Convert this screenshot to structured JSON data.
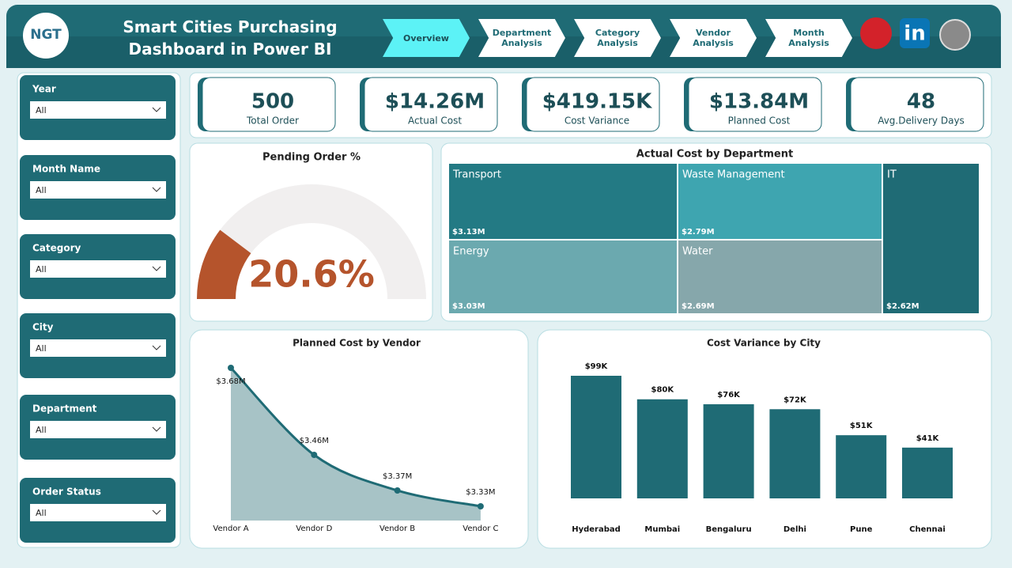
{
  "header": {
    "logo": "NGT",
    "title": "Smart Cities Purchasing Dashboard in Power BI"
  },
  "nav": [
    "Overview",
    "Department Analysis",
    "Category Analysis",
    "Vendor Analysis",
    "Month Analysis"
  ],
  "slicers": [
    {
      "label": "Year",
      "value": "All"
    },
    {
      "label": "Month Name",
      "value": "All"
    },
    {
      "label": "Category",
      "value": "All"
    },
    {
      "label": "City",
      "value": "All"
    },
    {
      "label": "Department",
      "value": "All"
    },
    {
      "label": "Order Status",
      "value": "All"
    }
  ],
  "kpis": [
    {
      "value": "500",
      "label": "Total Order"
    },
    {
      "value": "$14.26M",
      "label": "Actual Cost"
    },
    {
      "value": "$419.15K",
      "label": "Cost Variance"
    },
    {
      "value": "$13.84M",
      "label": "Planned Cost"
    },
    {
      "value": "48",
      "label": "Avg.Delivery Days"
    }
  ],
  "chart_data": [
    {
      "type": "gauge",
      "title": "Pending Order %",
      "values": [
        20.6
      ],
      "value_labels": [
        "20.6%"
      ],
      "ylim": [
        0,
        100
      ],
      "color": "#b5542c"
    },
    {
      "type": "treemap",
      "title": "Actual Cost by Department",
      "categories": [
        "Transport",
        "Waste Management",
        "IT",
        "Energy",
        "Water"
      ],
      "values": [
        3.13,
        2.79,
        2.62,
        3.03,
        2.69
      ],
      "value_labels": [
        "$3.13M",
        "$2.79M",
        "$2.62M",
        "$3.03M",
        "$2.69M"
      ],
      "colors": [
        "#237a84",
        "#3ea5b0",
        "#1f6b75",
        "#6ba9af",
        "#86a7ab"
      ]
    },
    {
      "type": "area",
      "title": "Planned Cost by Vendor",
      "categories": [
        "Vendor A",
        "Vendor D",
        "Vendor B",
        "Vendor C"
      ],
      "values": [
        3.68,
        3.46,
        3.37,
        3.33
      ],
      "value_labels": [
        "$3.68M",
        "$3.46M",
        "$3.37M",
        "$3.33M"
      ],
      "color": "#1f6b75"
    },
    {
      "type": "bar",
      "title": "Cost Variance by City",
      "categories": [
        "Hyderabad",
        "Mumbai",
        "Bengaluru",
        "Delhi",
        "Pune",
        "Chennai"
      ],
      "values": [
        99,
        80,
        76,
        72,
        51,
        41
      ],
      "value_labels": [
        "$99K",
        "$80K",
        "$76K",
        "$72K",
        "$51K",
        "$41K"
      ],
      "color": "#1f6b75"
    }
  ]
}
